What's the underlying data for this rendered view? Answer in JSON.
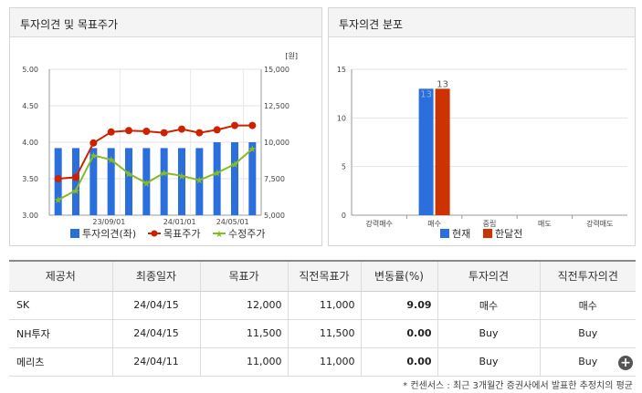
{
  "left_panel": {
    "title": "투자의견 및 목표주가"
  },
  "right_panel": {
    "title": "투자의견 분포"
  },
  "chart_data": [
    {
      "type": "bar+line",
      "title": "투자의견 및 목표주가",
      "unit": "[원]",
      "x_ticks": [
        "23/09/01",
        "24/01/01",
        "24/05/01"
      ],
      "y_left": {
        "lim": [
          3.0,
          5.0
        ],
        "ticks": [
          "3.00",
          "3.50",
          "4.00",
          "4.50",
          "5.00"
        ]
      },
      "y_right": {
        "lim": [
          5000,
          15000
        ],
        "ticks": [
          "5,000",
          "7,500",
          "10,000",
          "12,500",
          "15,000"
        ]
      },
      "series": [
        {
          "name": "투자의견(좌)",
          "type": "bar",
          "axis": "left",
          "color": "#2a6fdb",
          "values": [
            3.92,
            3.92,
            3.92,
            3.92,
            3.92,
            3.92,
            3.92,
            3.92,
            3.92,
            4.0,
            4.0,
            4.0
          ]
        },
        {
          "name": "목표주가",
          "type": "line",
          "axis": "right",
          "color": "#cc2200",
          "values": [
            7500,
            7600,
            9950,
            10700,
            10800,
            10750,
            10650,
            10900,
            10650,
            10850,
            11150,
            11150
          ]
        },
        {
          "name": "수정주가",
          "type": "line",
          "axis": "right",
          "color": "#88bb22",
          "values": [
            6050,
            6700,
            9100,
            8800,
            7850,
            7200,
            7900,
            7700,
            7400,
            7900,
            8500,
            9550
          ]
        }
      ]
    },
    {
      "type": "bar",
      "title": "투자의견 분포",
      "categories": [
        "강력매수",
        "매수",
        "중립",
        "매도",
        "강력매도"
      ],
      "ylim": [
        0,
        15
      ],
      "y_ticks": [
        "0",
        "5",
        "10",
        "15"
      ],
      "series": [
        {
          "name": "현재",
          "color": "#2a6fdb",
          "values": [
            0,
            13,
            0,
            0,
            0
          ],
          "label": "13"
        },
        {
          "name": "한달전",
          "color": "#cc3300",
          "values": [
            0,
            13,
            0,
            0,
            0
          ],
          "label": "13"
        }
      ]
    }
  ],
  "table": {
    "headers": [
      "제공처",
      "최종일자",
      "목표가",
      "직전목표가",
      "변동률(%)",
      "투자의견",
      "직전투자의견"
    ],
    "rows": [
      {
        "provider": "SK",
        "date": "24/04/15",
        "target": "12,000",
        "prev_target": "11,000",
        "change": "9.09",
        "opinion": "매수",
        "prev_opinion": "매수"
      },
      {
        "provider": "NH투자",
        "date": "24/04/15",
        "target": "11,500",
        "prev_target": "11,500",
        "change": "0.00",
        "opinion": "Buy",
        "prev_opinion": "Buy"
      },
      {
        "provider": "메리츠",
        "date": "24/04/11",
        "target": "11,000",
        "prev_target": "11,000",
        "change": "0.00",
        "opinion": "Buy",
        "prev_opinion": "Buy"
      }
    ],
    "more_symbol": "+"
  },
  "footnote": "* 컨센서스 : 최근 3개월간 증권사에서 발표한 추정치의 평균"
}
